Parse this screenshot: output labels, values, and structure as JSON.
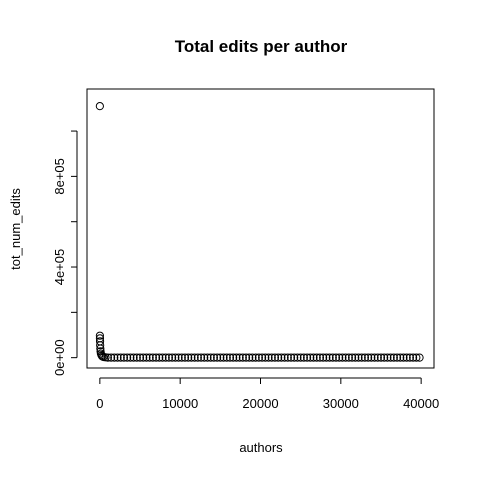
{
  "chart_data": {
    "type": "scatter",
    "title": "Total edits per author",
    "xlabel": "authors",
    "ylabel": "tot_num_edits",
    "xlim": [
      -1600,
      41600
    ],
    "ylim": [
      -45600,
      1185600
    ],
    "x_ticks": [
      0,
      10000,
      20000,
      30000,
      40000
    ],
    "x_tick_labels": [
      "0",
      "10000",
      "20000",
      "30000",
      "40000"
    ],
    "y_ticks": [
      0,
      200000,
      400000,
      600000,
      800000,
      1000000
    ],
    "y_tick_labels": [
      "0e+00",
      "",
      "4e+05",
      "",
      "8e+05",
      ""
    ],
    "grid": false,
    "marker": "open-circle",
    "marker_color": "#000000",
    "points": [
      {
        "x": 1,
        "y": 1110000
      },
      {
        "x": 5,
        "y": 97000
      },
      {
        "x": 12,
        "y": 85000
      },
      {
        "x": 25,
        "y": 72000
      },
      {
        "x": 40,
        "y": 55000
      },
      {
        "x": 60,
        "y": 40000
      },
      {
        "x": 90,
        "y": 28000
      },
      {
        "x": 130,
        "y": 18000
      },
      {
        "x": 200,
        "y": 11000
      },
      {
        "x": 300,
        "y": 6000
      },
      {
        "x": 450,
        "y": 3000
      },
      {
        "x": 700,
        "y": 1500
      }
    ],
    "tail": {
      "x_start": 1000,
      "x_end": 40000,
      "step": 400,
      "y": 200
    }
  }
}
